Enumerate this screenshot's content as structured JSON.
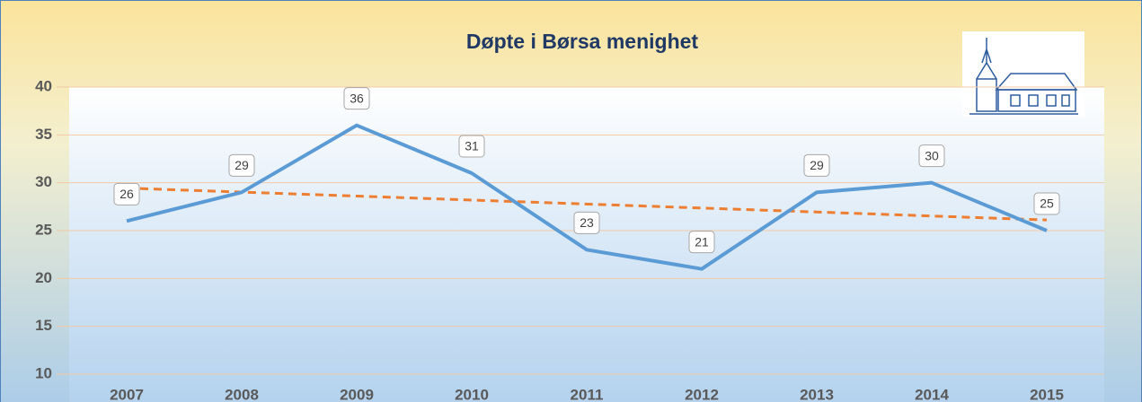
{
  "chart_data": {
    "type": "line",
    "title": "Døpte i Børsa menighet",
    "categories": [
      "2007",
      "2008",
      "2009",
      "2010",
      "2011",
      "2012",
      "2013",
      "2014",
      "2015"
    ],
    "series": [
      {
        "color": "#5b9bd5",
        "values": [
          26,
          29,
          36,
          31,
          23,
          21,
          29,
          30,
          25
        ]
      }
    ],
    "trend": {
      "color": "#ed7d31",
      "values": [
        29.44,
        26.11
      ]
    },
    "ylim": [
      10,
      40
    ],
    "yticks": [
      10,
      15,
      20,
      25,
      30,
      35,
      40
    ],
    "grid": true,
    "data_labels": true
  }
}
